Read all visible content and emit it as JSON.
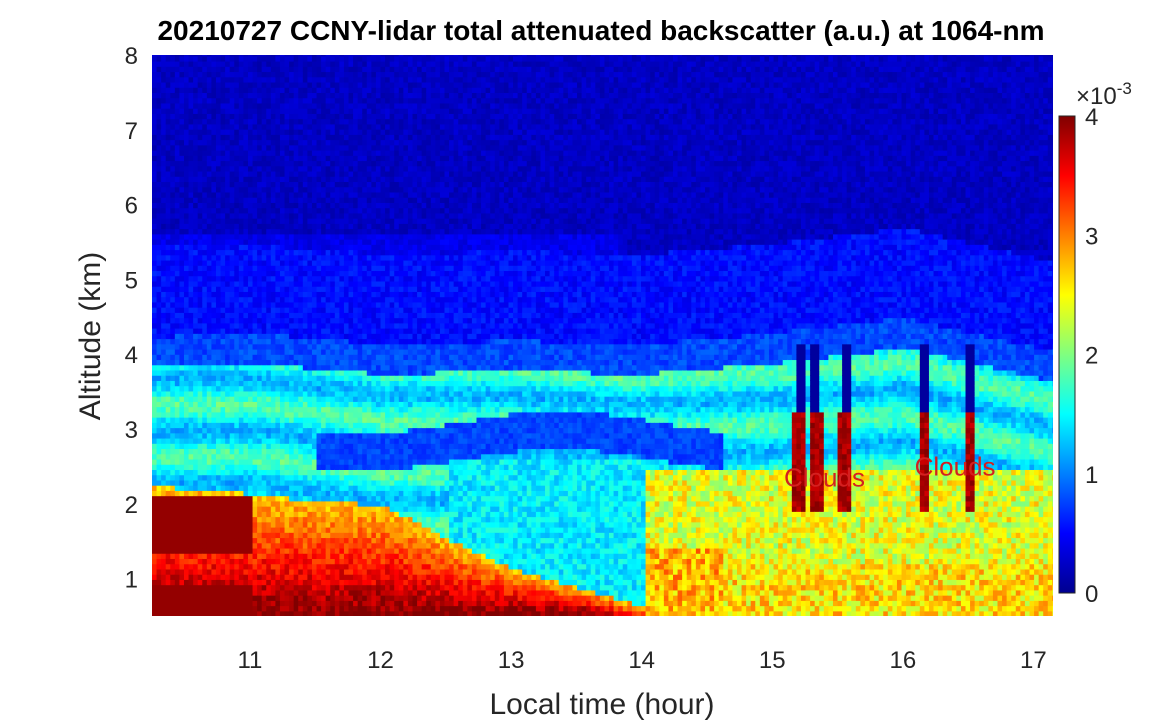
{
  "chart_data": {
    "type": "heatmap",
    "title": "20210727 CCNY-lidar total attenuated backscatter (a.u.) at 1064-nm",
    "xlabel": "Local time (hour)",
    "ylabel": "Altitude (km)",
    "xlim": [
      10.25,
      17.15
    ],
    "ylim": [
      0.5,
      8
    ],
    "x_ticks": [
      "11",
      "12",
      "13",
      "14",
      "15",
      "16",
      "17"
    ],
    "x_tick_values": [
      11,
      12,
      13,
      14,
      15,
      16,
      17
    ],
    "y_ticks": [
      "1",
      "2",
      "3",
      "4",
      "5",
      "6",
      "7",
      "8"
    ],
    "y_tick_values": [
      1,
      2,
      3,
      4,
      5,
      6,
      7,
      8
    ],
    "colorbar": {
      "label_exponent": "×10",
      "exponent_power": "-3",
      "range": [
        0,
        4
      ],
      "ticks": [
        "0",
        "1",
        "2",
        "3",
        "4"
      ],
      "tick_values": [
        0,
        1,
        2,
        3,
        4
      ],
      "colormap": "jet"
    },
    "annotations": [
      {
        "text": "Clouds",
        "x": 15.4,
        "y": 2.35
      },
      {
        "text": "Clouds",
        "x": 16.4,
        "y": 2.5
      }
    ],
    "layers": {
      "aerosol_layer_top_km": [
        {
          "t": 10.25,
          "z": 3.8
        },
        {
          "t": 11.0,
          "z": 3.85
        },
        {
          "t": 12.0,
          "z": 3.7
        },
        {
          "t": 13.0,
          "z": 3.75
        },
        {
          "t": 14.0,
          "z": 3.7
        },
        {
          "t": 15.0,
          "z": 3.85
        },
        {
          "t": 16.0,
          "z": 4.05
        },
        {
          "t": 17.15,
          "z": 3.6
        }
      ],
      "low_dense_layer_top_km": [
        {
          "t": 10.25,
          "z": 2.2
        },
        {
          "t": 11.0,
          "z": 2.1
        },
        {
          "t": 11.5,
          "z": 2.0
        },
        {
          "t": 12.0,
          "z": 1.95
        },
        {
          "t": 12.5,
          "z": 1.5
        },
        {
          "t": 13.0,
          "z": 1.1
        },
        {
          "t": 14.0,
          "z": 0.6
        }
      ]
    },
    "colors": {
      "background_low": "#00008f",
      "high": "#800000"
    }
  }
}
